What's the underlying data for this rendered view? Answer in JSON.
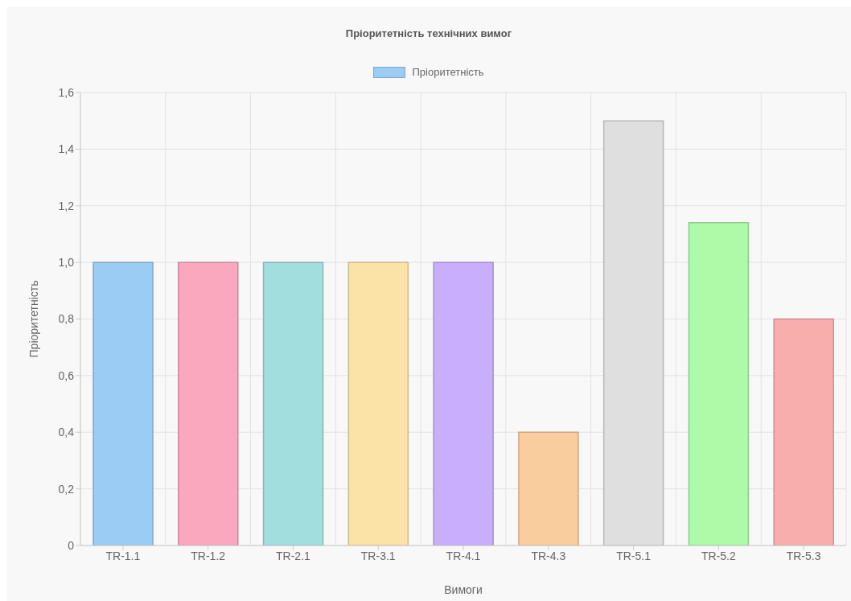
{
  "chart_data": {
    "type": "bar",
    "title": "Пріоритетність технічних вимог",
    "xlabel": "Вимоги",
    "ylabel": "Пріоритетність",
    "categories": [
      "TR-1.1",
      "TR-1.2",
      "TR-2.1",
      "TR-3.1",
      "TR-4.1",
      "TR-4.3",
      "TR-5.1",
      "TR-5.2",
      "TR-5.3"
    ],
    "series": [
      {
        "name": "Пріоритетність",
        "color": "#9bcdf4",
        "colors": [
          "#9bcdf4",
          "#f9a8be",
          "#a3dede",
          "#fbe2a7",
          "#c8aefc",
          "#f9cd9e",
          "#dfdfdf",
          "#adfaa8",
          "#f9aeae"
        ],
        "values": [
          1,
          1,
          1,
          1,
          1,
          0.4,
          1.5,
          1.14,
          0.8
        ]
      }
    ],
    "ylim": [
      0,
      1.6
    ],
    "yticks": [
      {
        "value": 0,
        "label": "0"
      },
      {
        "value": 0.2,
        "label": "0,2"
      },
      {
        "value": 0.4,
        "label": "0,4"
      },
      {
        "value": 0.6,
        "label": "0,6"
      },
      {
        "value": 0.8,
        "label": "0,8"
      },
      {
        "value": 1,
        "label": "1,0"
      },
      {
        "value": 1.2,
        "label": "1,2"
      },
      {
        "value": 1.4,
        "label": "1,4"
      },
      {
        "value": 1.6,
        "label": "1,6"
      }
    ],
    "grid": true,
    "legend": "top"
  }
}
